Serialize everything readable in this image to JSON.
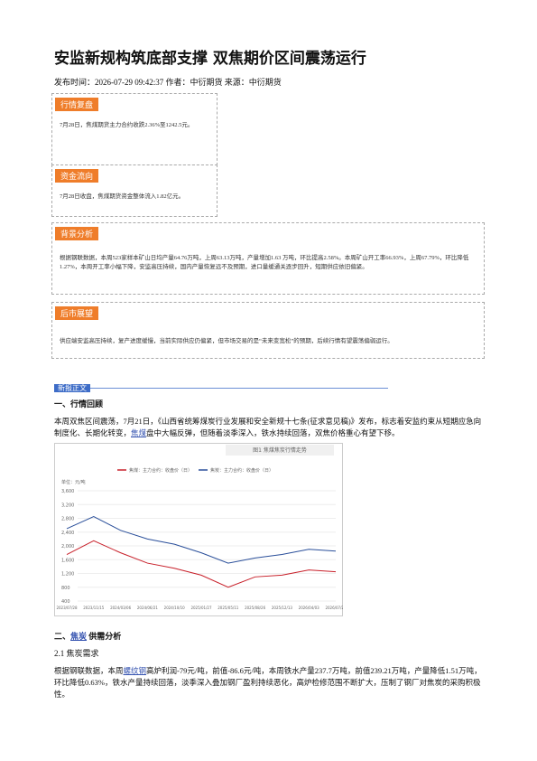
{
  "header": {
    "title": "安监新规构筑底部支撑 双焦期价区间震荡运行",
    "meta": "发布时间：2026-07-29 09:42:37 作者：中衍期货 来源：中衍期货"
  },
  "sections": [
    {
      "label": "行情复盘",
      "text": "7月28日，焦煤期货主力合约收跌2.36%至1242.5元。"
    },
    {
      "label": "资金流向",
      "text": "7月28日收盘，焦煤期货资金整体流入1.82亿元。"
    },
    {
      "label": "背景分析",
      "text": "根据钢联数据，本周523家样本矿山日均产量64.76万吨，上周63.13万吨，产量增加1.63 万吨，环比提高2.58%。本周矿山开工率66.93%，上周67.79%，环比降低1.27%，本周开工率小幅下降，安监高压持续，国内产量恢复远不及预期，进口量缓通关逐步回升，短期供应依旧偏紧。"
    },
    {
      "label": "后市展望",
      "text": "供应端安监高压持续，复产进度缓慢，当前实际供应仍偏紧，但市场交易的是“未来变宽松”的预期，后续行情有望震荡偏弱运行。"
    }
  ],
  "body_tag": "新报正文",
  "h1": "一、行情回顾",
  "p1": [
    "本周双焦区间震荡，7月21日，《山西省统筹煤炭行业发展和安全新规十七条(征求意见稿)》发布，标志着安监约束从短期应急向制度化、长期化转变，",
    "焦煤",
    "盘中大幅反弹，但随着淡季深入，铁水持续回落，双焦价格重心有望下移。"
  ],
  "h2": [
    "二、",
    "焦炭",
    "供需分析"
  ],
  "h3": "2.1 焦炭需求",
  "p2": [
    "根据钢联数据，本周",
    "螺纹钢",
    "高炉利润-79元/吨，前值-86.6元/吨，本周铁水产量237.7万吨，前值239.21万吨，产量降低1.51万吨，环比降低0.63%，铁水产量持续回落，淡季深入叠加钢厂盈利持续恶化，高炉检修范围不断扩大，压制了钢厂对焦炭的采购积极性。"
  ],
  "chart_data": {
    "type": "line",
    "title": "图1 焦煤焦炭行情走势",
    "y_label": "单位：元/吨",
    "categories": [
      "2023/07/28",
      "2023/11/15",
      "2024/03/06",
      "2024/06/21",
      "2024/10/10",
      "2025/01/27",
      "2025/05/11",
      "2025/08/26",
      "2025/12/13",
      "2026/04/03",
      "2026/07/27"
    ],
    "series": [
      {
        "name": "焦煤：主力合约：收盘价（日）",
        "color": "#c8202a",
        "values": [
          1750,
          2150,
          1800,
          1500,
          1350,
          1150,
          800,
          1100,
          1150,
          1300,
          1250
        ]
      },
      {
        "name": "焦炭：主力合约：收盘价（日）",
        "color": "#2a4f9a",
        "values": [
          2500,
          2850,
          2450,
          2200,
          2050,
          1800,
          1500,
          1650,
          1750,
          1900,
          1850
        ]
      }
    ],
    "ylim": [
      400,
      3600
    ],
    "yticks": [
      400,
      {
        "value": 800,
        "label": "800"
      },
      {
        "value": 1200,
        "label": "1,200"
      },
      {
        "value": 1600,
        "label": "1,600"
      },
      {
        "value": 2000,
        "label": "2,000"
      },
      {
        "value": 2400,
        "label": "2,400"
      },
      {
        "value": 2800,
        "label": "2,800"
      },
      {
        "value": 3200,
        "label": "3,200"
      },
      {
        "value": 3600,
        "label": "3,600"
      }
    ],
    "grid": true
  }
}
